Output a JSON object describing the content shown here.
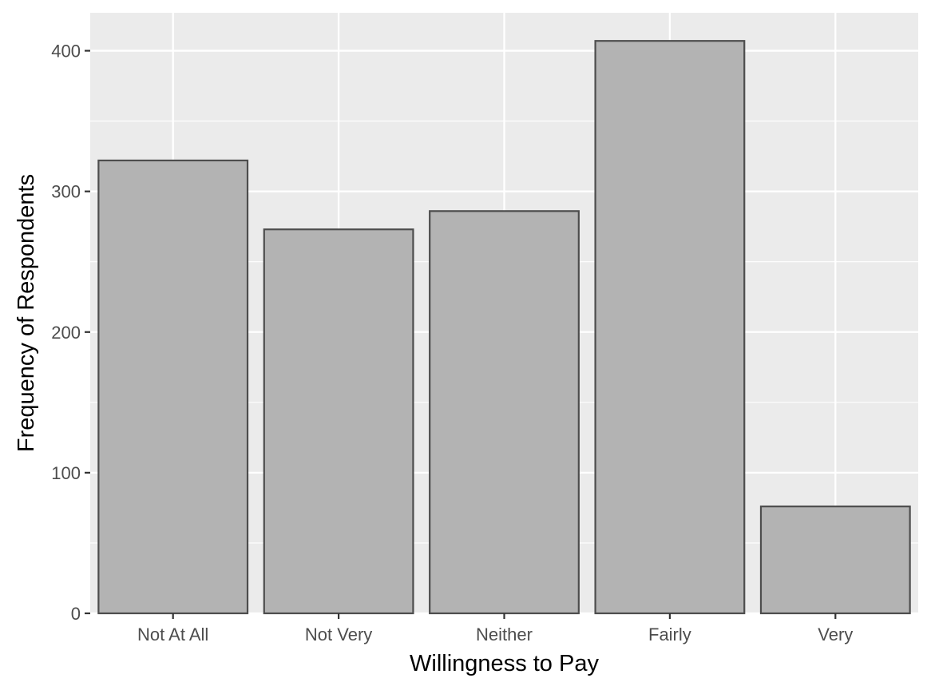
{
  "chart_data": {
    "type": "bar",
    "categories": [
      "Not At All",
      "Not Very",
      "Neither",
      "Fairly",
      "Very"
    ],
    "values": [
      322,
      273,
      286,
      407,
      76
    ],
    "title": "",
    "xlabel": "Willingness to Pay",
    "ylabel": "Frequency of Respondents",
    "ylim": [
      0,
      427
    ],
    "yticks": [
      0,
      100,
      200,
      300,
      400
    ],
    "grid": true,
    "colors": {
      "panel": "#ebebeb",
      "grid": "#ffffff",
      "bar_fill": "#b3b3b3",
      "bar_stroke": "#4d4d4d",
      "tick_text": "#4d4d4d",
      "axis_text": "#000000"
    }
  }
}
